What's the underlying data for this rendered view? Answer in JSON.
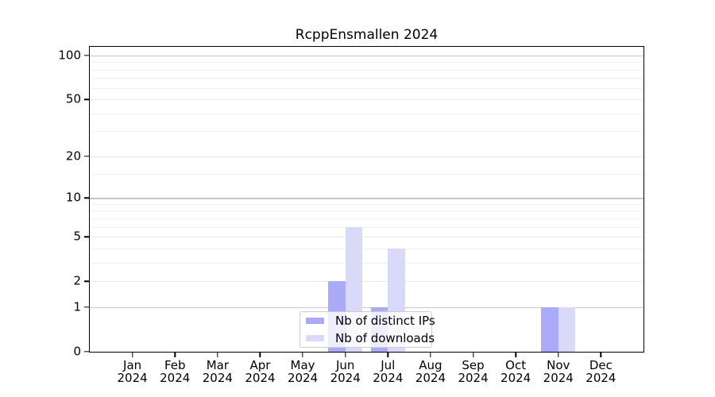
{
  "chart_data": {
    "type": "bar",
    "title": "RcppEnsmallen 2024",
    "categories": [
      {
        "month": "Jan",
        "year": "2024"
      },
      {
        "month": "Feb",
        "year": "2024"
      },
      {
        "month": "Mar",
        "year": "2024"
      },
      {
        "month": "Apr",
        "year": "2024"
      },
      {
        "month": "May",
        "year": "2024"
      },
      {
        "month": "Jun",
        "year": "2024"
      },
      {
        "month": "Jul",
        "year": "2024"
      },
      {
        "month": "Aug",
        "year": "2024"
      },
      {
        "month": "Sep",
        "year": "2024"
      },
      {
        "month": "Oct",
        "year": "2024"
      },
      {
        "month": "Nov",
        "year": "2024"
      },
      {
        "month": "Dec",
        "year": "2024"
      }
    ],
    "series": [
      {
        "name": "Nb of distinct IPs",
        "color": "#aaaaf8",
        "values": [
          0,
          0,
          0,
          0,
          0,
          2,
          1,
          0,
          0,
          0,
          1,
          0
        ]
      },
      {
        "name": "Nb of downloads",
        "color": "#d9d9fa",
        "values": [
          0,
          0,
          0,
          0,
          0,
          6,
          4,
          0,
          0,
          0,
          1,
          0
        ]
      }
    ],
    "y_axis": {
      "scale": "log1p",
      "ticks": [
        0,
        1,
        2,
        5,
        10,
        20,
        50,
        100
      ],
      "major_gridlines": [
        1,
        10,
        100
      ],
      "minor_gridlines": [
        3,
        4,
        6,
        7,
        8,
        9,
        15,
        30,
        40,
        60,
        70,
        80,
        90
      ],
      "range": [
        0,
        115
      ]
    },
    "grid_colors": {
      "major": "#c6c6c6",
      "mid": "#e9e9e9",
      "minor": "#f0f0f0"
    },
    "legend": {
      "position": "lower-center"
    }
  }
}
